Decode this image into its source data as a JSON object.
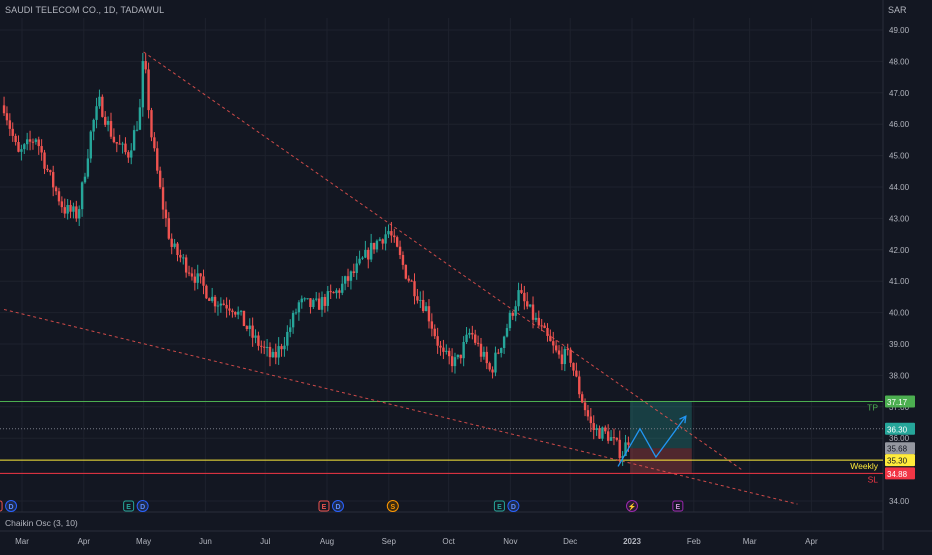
{
  "header": {
    "symbol_line": "SAUDI TELECOM CO., 1D, TADAWUL"
  },
  "currency": "SAR",
  "indicator_label": "Chaikin Osc (3, 10)",
  "colors": {
    "background": "#131722",
    "up": "#26a69a",
    "down": "#ef5350",
    "grid": "#1e222d",
    "text": "#b2b5be",
    "trendline": "#ef5350",
    "tp_line": "#4caf50",
    "sl_line": "#f23645",
    "weekly_line": "#ffeb3b",
    "projection": "#2196f3"
  },
  "chart_data": {
    "type": "candlestick",
    "title": "SAUDI TELECOM CO., 1D, TADAWUL",
    "y_unit": "SAR",
    "ylim": [
      33.6,
      49.6
    ],
    "y_ticks": [
      "49.00",
      "48.00",
      "47.00",
      "46.00",
      "45.00",
      "44.00",
      "43.00",
      "42.00",
      "41.00",
      "40.00",
      "39.00",
      "38.00",
      "37.00",
      "36.00",
      "34.00"
    ],
    "x_ticks": [
      "Mar",
      "Apr",
      "May",
      "Jun",
      "Jul",
      "Aug",
      "Sep",
      "Oct",
      "Nov",
      "Dec",
      "2023",
      "Feb",
      "Mar",
      "Apr"
    ],
    "x_tick_dates": [
      "2022-03-01",
      "2022-04-01",
      "2022-05-01",
      "2022-06-01",
      "2022-07-01",
      "2022-08-01",
      "2022-09-01",
      "2022-10-01",
      "2022-11-01",
      "2022-12-01",
      "2023-01-01",
      "2023-02-01",
      "2023-03-01",
      "2023-04-01"
    ],
    "price_path": [
      [
        "2022-02-20",
        46.6
      ],
      [
        "2022-02-27",
        45.0
      ],
      [
        "2022-03-08",
        45.6
      ],
      [
        "2022-03-15",
        44.3
      ],
      [
        "2022-03-22",
        43.3
      ],
      [
        "2022-03-29",
        43.1
      ],
      [
        "2022-04-05",
        45.9
      ],
      [
        "2022-04-09",
        46.7
      ],
      [
        "2022-04-16",
        45.5
      ],
      [
        "2022-04-23",
        45.0
      ],
      [
        "2022-04-29",
        46.3
      ],
      [
        "2022-05-01",
        48.2
      ],
      [
        "2022-05-05",
        45.6
      ],
      [
        "2022-05-10",
        43.6
      ],
      [
        "2022-05-15",
        42.1
      ],
      [
        "2022-05-25",
        41.3
      ],
      [
        "2022-06-05",
        40.4
      ],
      [
        "2022-06-15",
        40.2
      ],
      [
        "2022-06-25",
        39.2
      ],
      [
        "2022-07-05",
        38.5
      ],
      [
        "2022-07-12",
        39.3
      ],
      [
        "2022-07-18",
        40.3
      ],
      [
        "2022-07-26",
        40.2
      ],
      [
        "2022-08-05",
        40.6
      ],
      [
        "2022-08-15",
        41.3
      ],
      [
        "2022-08-25",
        42.2
      ],
      [
        "2022-09-01",
        42.6
      ],
      [
        "2022-09-10",
        41.2
      ],
      [
        "2022-09-20",
        40.1
      ],
      [
        "2022-09-28",
        38.6
      ],
      [
        "2022-10-05",
        38.4
      ],
      [
        "2022-10-12",
        39.4
      ],
      [
        "2022-10-22",
        38.1
      ],
      [
        "2022-10-30",
        39.5
      ],
      [
        "2022-11-05",
        40.6
      ],
      [
        "2022-11-15",
        39.6
      ],
      [
        "2022-11-25",
        38.6
      ],
      [
        "2022-12-01",
        38.6
      ],
      [
        "2022-12-05",
        37.6
      ],
      [
        "2022-12-12",
        36.3
      ],
      [
        "2022-12-20",
        36.1
      ],
      [
        "2022-12-27",
        35.5
      ],
      [
        "2022-12-31",
        36.1
      ]
    ],
    "trendlines": [
      {
        "style": "dashed",
        "from": [
          "2022-05-01",
          48.3
        ],
        "to": [
          "2023-02-25",
          35.0
        ]
      },
      {
        "style": "dashed",
        "from": [
          "2022-02-20",
          40.1
        ],
        "to": [
          "2023-03-25",
          33.9
        ]
      }
    ],
    "horizontal_levels": [
      {
        "name": "TP",
        "value": 37.17,
        "label": "37.17"
      },
      {
        "name": "entry",
        "value": 36.3,
        "label": "36.30"
      },
      {
        "name": "last",
        "value": 35.68,
        "label": "35.68"
      },
      {
        "name": "Weekly",
        "value": 35.3,
        "label": "35.30"
      },
      {
        "name": "SL",
        "value": 34.88,
        "label": "34.88"
      }
    ],
    "level_labels": {
      "tp": "TP",
      "weekly": "Weekly",
      "sl": "SL"
    },
    "position_box": {
      "from": "2022-12-31",
      "to": "2023-01-31",
      "target": 37.17,
      "entry": 35.68,
      "stop": 34.88
    },
    "projection_path": [
      [
        "2022-12-25",
        35.1
      ],
      [
        "2023-01-05",
        36.3
      ],
      [
        "2023-01-13",
        35.4
      ],
      [
        "2023-01-28",
        36.7
      ]
    ],
    "event_markers": [
      {
        "date": "2022-02-20",
        "letters": [
          "E",
          "D"
        ]
      },
      {
        "date": "2022-04-27",
        "letters": [
          "E",
          "D"
        ]
      },
      {
        "date": "2022-08-03",
        "letters": [
          "E",
          "D"
        ]
      },
      {
        "date": "2022-09-03",
        "letters": [
          "S"
        ]
      },
      {
        "date": "2022-10-30",
        "letters": [
          "E",
          "D"
        ]
      },
      {
        "date": "2023-01-01",
        "letters": [
          "⚡"
        ]
      },
      {
        "date": "2023-01-24",
        "letters": [
          "E"
        ]
      }
    ]
  }
}
